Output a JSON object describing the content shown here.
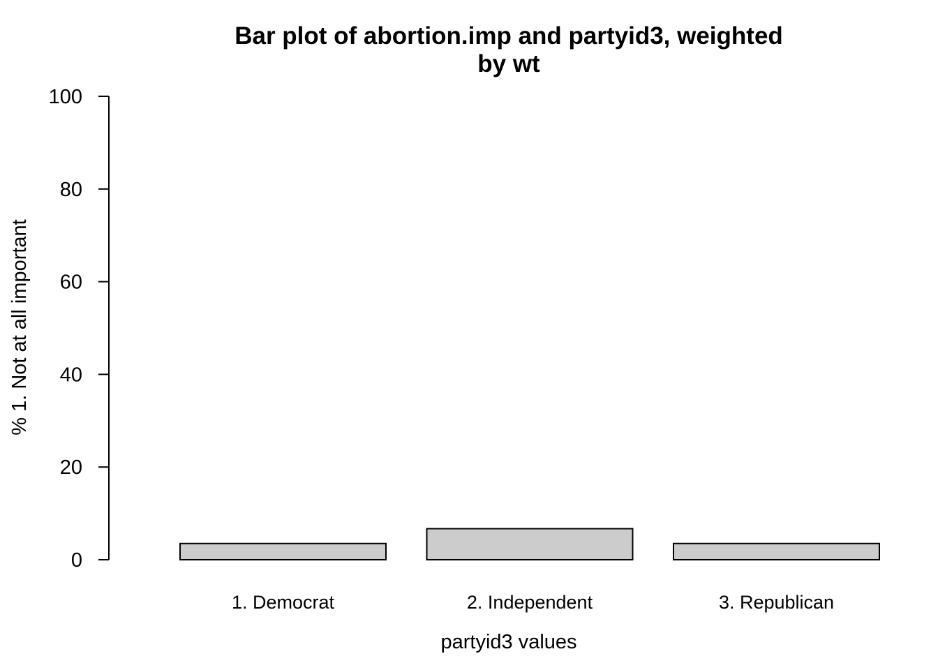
{
  "chart_data": {
    "type": "bar",
    "title_lines": [
      "Bar plot of abortion.imp and partyid3, weighted",
      "by wt"
    ],
    "xlabel": "partyid3 values",
    "ylabel": "% 1. Not at all important",
    "categories": [
      "1. Democrat",
      "2. Independent",
      "3. Republican"
    ],
    "values": [
      3.5,
      6.7,
      3.5
    ],
    "ylim": [
      0,
      100
    ],
    "yticks": [
      0,
      20,
      40,
      60,
      80,
      100
    ],
    "bar_fill": "#cccccc",
    "grid": false,
    "legend": "none"
  }
}
